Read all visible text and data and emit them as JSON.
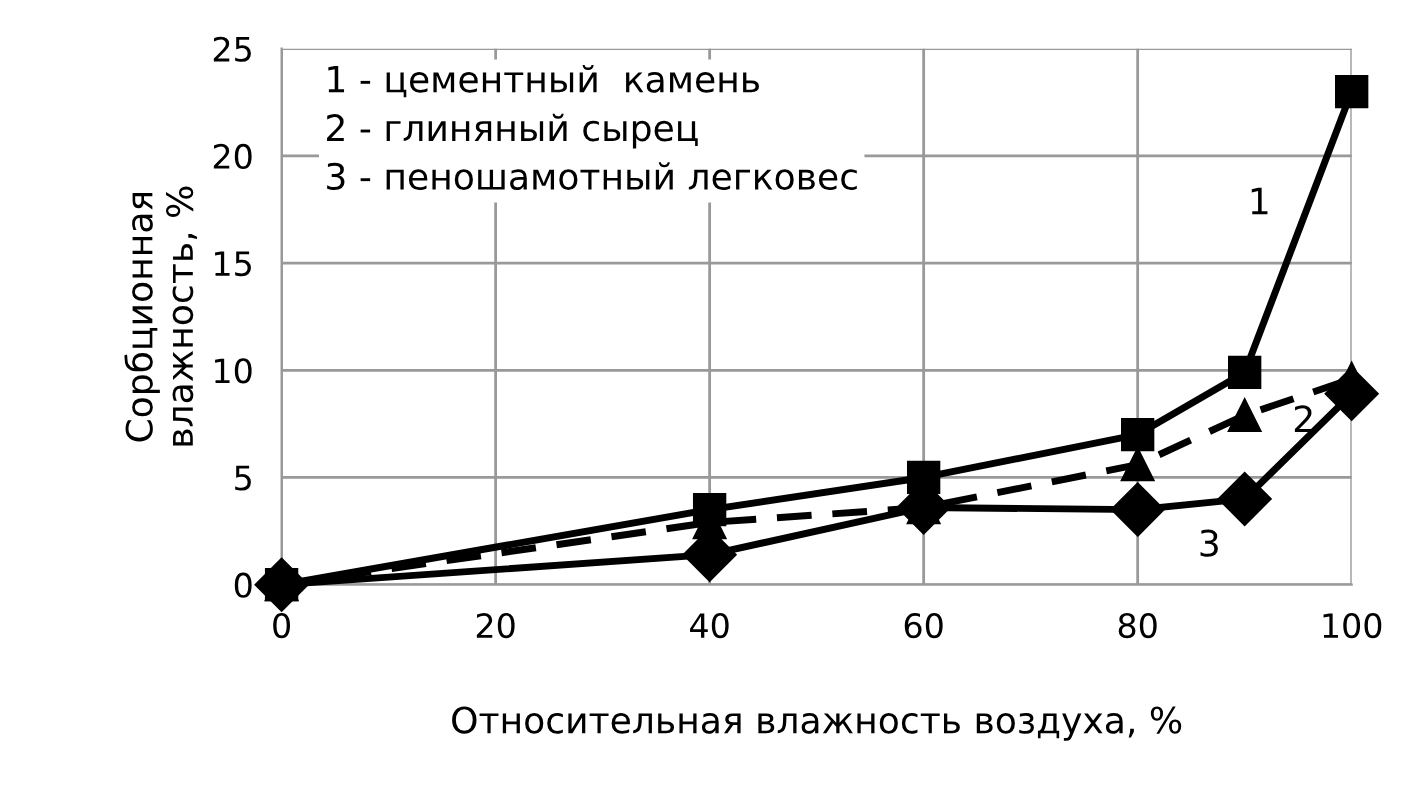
{
  "chart_data": {
    "type": "line",
    "xlabel": "Относительная влажность воздуха, %",
    "ylabel": "Сорбционная\nвлажность, %",
    "x": [
      0,
      40,
      60,
      80,
      90,
      100
    ],
    "series": [
      {
        "name": "1",
        "color": "#000000",
        "marker": "square",
        "line_style": "solid",
        "values": [
          0,
          3.5,
          5.0,
          7.0,
          9.9,
          23
        ]
      },
      {
        "name": "2",
        "color": "#000000",
        "marker": "triangle",
        "line_style": "dashed",
        "values": [
          0,
          2.9,
          3.6,
          5.6,
          7.9,
          9.6
        ]
      },
      {
        "name": "3",
        "color": "#000000",
        "marker": "diamond",
        "line_style": "solid",
        "values": [
          0,
          1.4,
          3.6,
          3.5,
          4.0,
          8.9
        ]
      }
    ],
    "annotations": [
      "1 - цементный  камень",
      "2 - глиняный сырец",
      "3 - пеношамотный легковес"
    ],
    "xlim": [
      0,
      100
    ],
    "xticks": [
      0,
      20,
      40,
      60,
      80,
      100
    ],
    "ylim": [
      0,
      25
    ],
    "yticks": [
      0,
      5,
      10,
      15,
      20,
      25
    ],
    "grid": true,
    "legend": false
  }
}
